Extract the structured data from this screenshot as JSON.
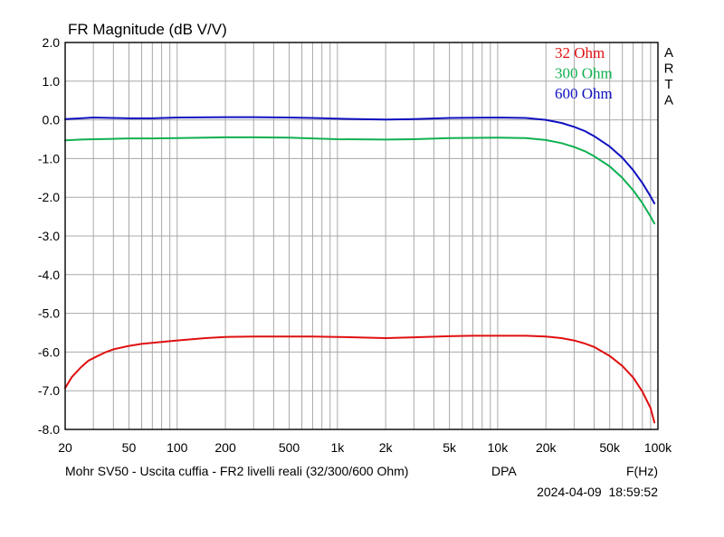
{
  "chart_data": {
    "type": "line",
    "title": "FR Magnitude (dB V/V)",
    "brand": "ARTA",
    "xlabel": "F(Hz)",
    "footer_caption": "Mohr SV50 - Uscita cuffia - FR2 livelli reali (32/300/600 Ohm)",
    "footer_tag": "DPA",
    "timestamp": "2024-04-09  18:59:52",
    "xscale": "log",
    "xlim": [
      20,
      100000
    ],
    "ylim": [
      -8,
      2
    ],
    "grid": true,
    "legend_position": "top-right",
    "x_ticks": [
      {
        "v": 20,
        "label": "20"
      },
      {
        "v": 50,
        "label": "50"
      },
      {
        "v": 100,
        "label": "100"
      },
      {
        "v": 200,
        "label": "200"
      },
      {
        "v": 500,
        "label": "500"
      },
      {
        "v": 1000,
        "label": "1k"
      },
      {
        "v": 2000,
        "label": "2k"
      },
      {
        "v": 5000,
        "label": "5k"
      },
      {
        "v": 10000,
        "label": "10k"
      },
      {
        "v": 20000,
        "label": "20k"
      },
      {
        "v": 50000,
        "label": "50k"
      },
      {
        "v": 100000,
        "label": "100k"
      }
    ],
    "y_ticks": [
      {
        "v": 2,
        "label": "2.0"
      },
      {
        "v": 1,
        "label": "1.0"
      },
      {
        "v": 0,
        "label": "0.0"
      },
      {
        "v": -1,
        "label": "-1.0"
      },
      {
        "v": -2,
        "label": "-2.0"
      },
      {
        "v": -3,
        "label": "-3.0"
      },
      {
        "v": -4,
        "label": "-4.0"
      },
      {
        "v": -5,
        "label": "-5.0"
      },
      {
        "v": -6,
        "label": "-6.0"
      },
      {
        "v": -7,
        "label": "-7.0"
      },
      {
        "v": -8,
        "label": "-8.0"
      }
    ],
    "series": [
      {
        "name": "32 Ohm",
        "color": "#e01010",
        "x": [
          20,
          22,
          25,
          28,
          32,
          36,
          40,
          50,
          60,
          80,
          100,
          150,
          200,
          300,
          500,
          700,
          1000,
          2000,
          3000,
          5000,
          7000,
          10000,
          15000,
          20000,
          25000,
          30000,
          35000,
          40000,
          50000,
          60000,
          70000,
          80000,
          90000,
          95000
        ],
        "y": [
          -6.93,
          -6.65,
          -6.4,
          -6.22,
          -6.1,
          -6.0,
          -5.93,
          -5.84,
          -5.79,
          -5.74,
          -5.7,
          -5.64,
          -5.61,
          -5.6,
          -5.6,
          -5.6,
          -5.61,
          -5.64,
          -5.62,
          -5.59,
          -5.58,
          -5.58,
          -5.58,
          -5.6,
          -5.64,
          -5.7,
          -5.78,
          -5.87,
          -6.1,
          -6.36,
          -6.66,
          -7.02,
          -7.45,
          -7.82
        ]
      },
      {
        "name": "300 Ohm",
        "color": "#10b050",
        "x": [
          20,
          25,
          30,
          40,
          50,
          70,
          100,
          200,
          300,
          500,
          700,
          1000,
          2000,
          3000,
          5000,
          10000,
          15000,
          20000,
          25000,
          30000,
          35000,
          40000,
          50000,
          60000,
          70000,
          80000,
          90000,
          95000
        ],
        "y": [
          -0.53,
          -0.51,
          -0.5,
          -0.49,
          -0.48,
          -0.48,
          -0.47,
          -0.45,
          -0.45,
          -0.46,
          -0.48,
          -0.5,
          -0.51,
          -0.5,
          -0.47,
          -0.46,
          -0.47,
          -0.52,
          -0.6,
          -0.7,
          -0.81,
          -0.94,
          -1.2,
          -1.5,
          -1.82,
          -2.15,
          -2.5,
          -2.68
        ]
      },
      {
        "name": "600 Ohm",
        "color": "#1010c0",
        "x": [
          20,
          25,
          30,
          40,
          50,
          70,
          100,
          200,
          300,
          500,
          700,
          1000,
          2000,
          3000,
          5000,
          10000,
          15000,
          20000,
          25000,
          30000,
          35000,
          40000,
          50000,
          60000,
          70000,
          80000,
          90000,
          95000
        ],
        "y": [
          0.02,
          0.04,
          0.06,
          0.05,
          0.04,
          0.04,
          0.06,
          0.07,
          0.07,
          0.06,
          0.05,
          0.03,
          0.01,
          0.02,
          0.05,
          0.06,
          0.05,
          0.0,
          -0.08,
          -0.18,
          -0.29,
          -0.42,
          -0.69,
          -0.98,
          -1.3,
          -1.63,
          -1.98,
          -2.16
        ]
      }
    ]
  }
}
